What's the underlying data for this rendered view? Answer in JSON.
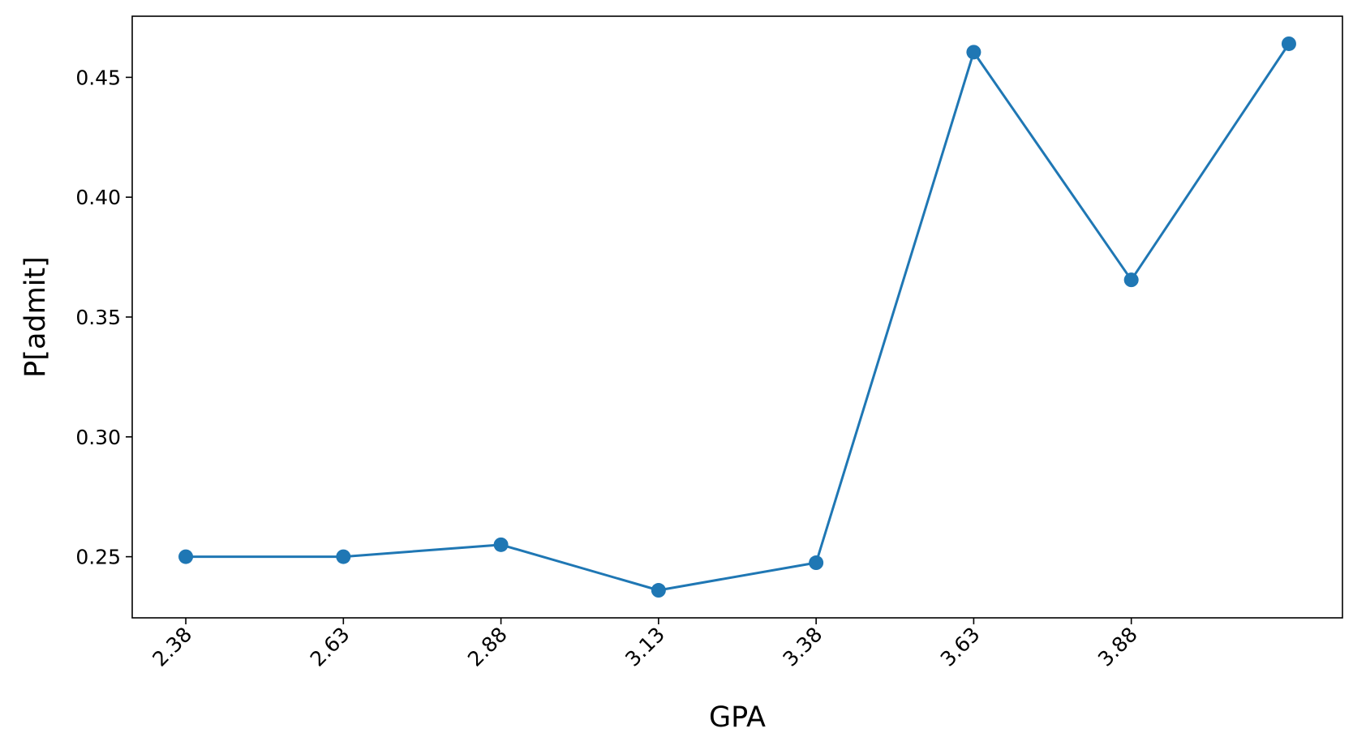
{
  "chart_data": {
    "type": "line",
    "title": "",
    "xlabel": "GPA",
    "ylabel": "P[admit]",
    "x": [
      2.38,
      2.63,
      2.88,
      3.13,
      3.38,
      3.63,
      3.88,
      4.13
    ],
    "xticks": [
      "2.38",
      "2.63",
      "2.88",
      "3.13",
      "3.38",
      "3.63",
      "3.88"
    ],
    "xlim": [
      2.295,
      4.215
    ],
    "yticks": [
      "0.25",
      "0.30",
      "0.35",
      "0.40",
      "0.45"
    ],
    "ylim": [
      0.2245,
      0.4755
    ],
    "series": [
      {
        "name": "",
        "values": [
          0.25,
          0.25,
          0.255,
          0.236,
          0.2475,
          0.4605,
          0.3655,
          0.464
        ],
        "color": "#1f77b4",
        "marker": "circle"
      }
    ],
    "grid": false,
    "legend": "none"
  }
}
